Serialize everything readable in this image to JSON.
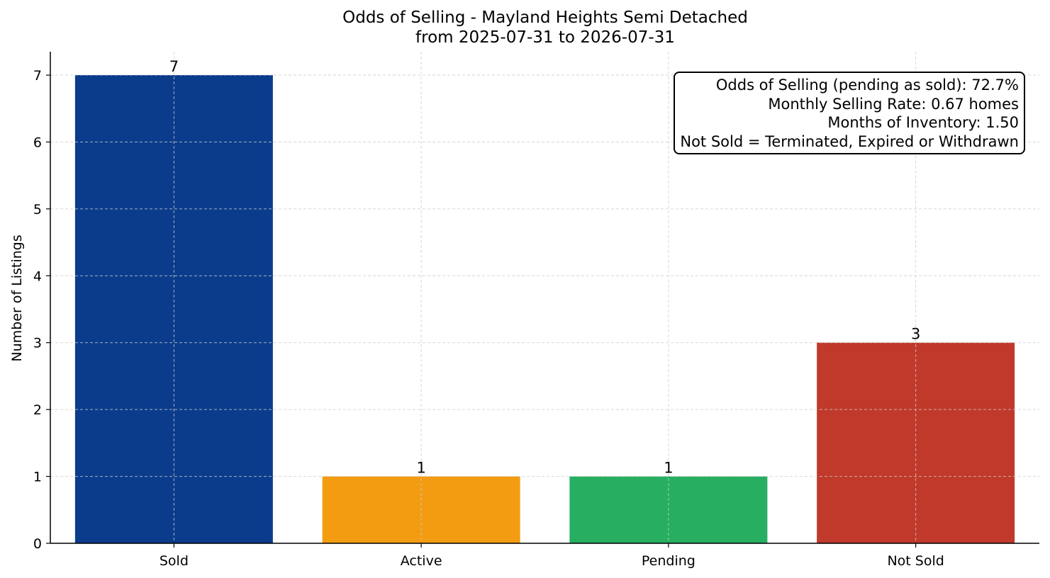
{
  "chart_data": {
    "type": "bar",
    "title": "Odds of Selling - Mayland Heights Semi Detached",
    "subtitle": "from 2025-07-31 to 2026-07-31",
    "xlabel": "",
    "ylabel": "Number of Listings",
    "categories": [
      "Sold",
      "Active",
      "Pending",
      "Not Sold"
    ],
    "values": [
      7,
      1,
      1,
      3
    ],
    "colors": [
      "#0b3c8c",
      "#f39c12",
      "#27ae60",
      "#c0392b"
    ],
    "ylim": [
      0,
      7.35
    ],
    "yticks": [
      0,
      1,
      2,
      3,
      4,
      5,
      6,
      7
    ],
    "grid": true,
    "annotations": [
      "Odds of Selling (pending as sold): 72.7%",
      "Monthly Selling Rate: 0.67 homes",
      "Months of Inventory: 1.50",
      "Not Sold = Terminated, Expired or Withdrawn"
    ],
    "annotation_placement": "top-right"
  }
}
